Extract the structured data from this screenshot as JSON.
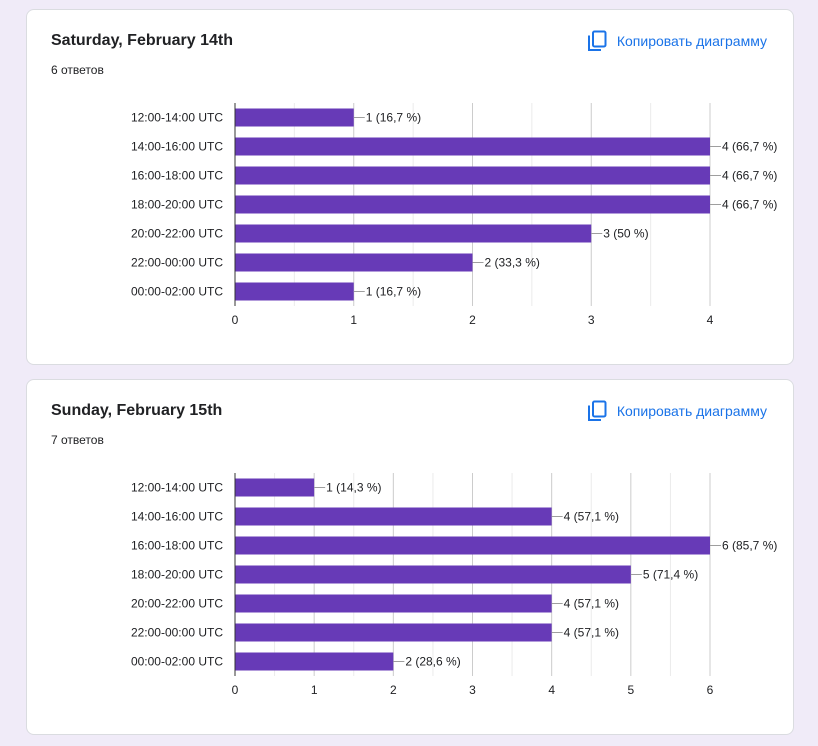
{
  "copy_label": "Копировать диаграмму",
  "questions": [
    {
      "title": "Saturday, February 14th",
      "count": "6 ответов"
    },
    {
      "title": "Sunday, February 15th",
      "count": "7 ответов"
    }
  ],
  "colors": {
    "bar": "#673ab7",
    "accent": "#1a73e8",
    "background": "#f0ebf8"
  },
  "chart_data": [
    {
      "type": "bar",
      "orientation": "horizontal",
      "categories": [
        "12:00-14:00 UTC",
        "14:00-16:00 UTC",
        "16:00-18:00 UTC",
        "18:00-20:00 UTC",
        "20:00-22:00 UTC",
        "22:00-00:00 UTC",
        "00:00-02:00 UTC"
      ],
      "values": [
        1,
        4,
        4,
        4,
        3,
        2,
        1
      ],
      "labels": [
        "1 (16,7 %)",
        "4 (66,7 %)",
        "4 (66,7 %)",
        "4 (66,7 %)",
        "3 (50 %)",
        "2 (33,3 %)",
        "1 (16,7 %)"
      ],
      "xlim": [
        0,
        4
      ],
      "xticks": [
        0,
        1,
        2,
        3,
        4
      ],
      "grid": true
    },
    {
      "type": "bar",
      "orientation": "horizontal",
      "categories": [
        "12:00-14:00 UTC",
        "14:00-16:00 UTC",
        "16:00-18:00 UTC",
        "18:00-20:00 UTC",
        "20:00-22:00 UTC",
        "22:00-00:00 UTC",
        "00:00-02:00 UTC"
      ],
      "values": [
        1,
        4,
        6,
        5,
        4,
        4,
        2
      ],
      "labels": [
        "1 (14,3 %)",
        "4 (57,1 %)",
        "6 (85,7 %)",
        "5 (71,4 %)",
        "4 (57,1 %)",
        "4 (57,1 %)",
        "2 (28,6 %)"
      ],
      "xlim": [
        0,
        6
      ],
      "xticks": [
        0,
        1,
        2,
        3,
        4,
        5,
        6
      ],
      "grid": true
    }
  ]
}
